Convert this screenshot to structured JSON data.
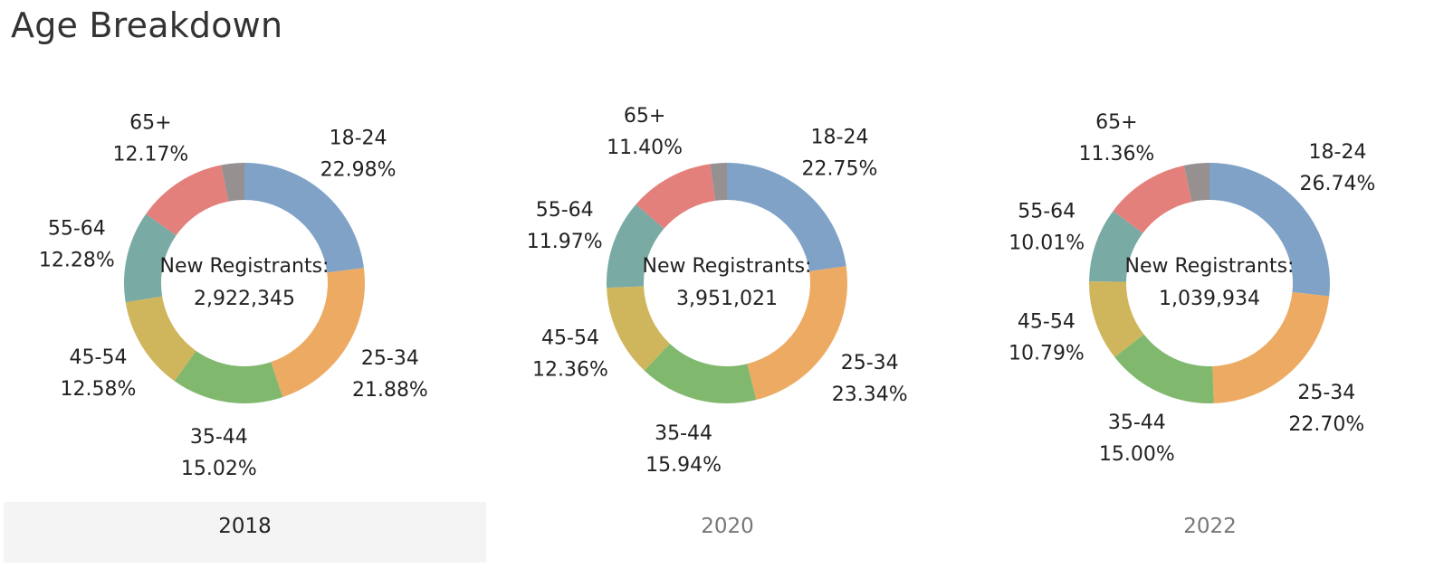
{
  "page": {
    "title": "Age Breakdown"
  },
  "colors": {
    "18-24": "#7fa2c6",
    "25-34": "#edaa62",
    "35-44": "#80b86e",
    "45-54": "#cfb65c",
    "55-64": "#7aaaa4",
    "65+": "#e4807c",
    "unknown": "#979090"
  },
  "tabs": [
    {
      "label": "2018",
      "active": true
    },
    {
      "label": "2020",
      "active": false
    },
    {
      "label": "2022",
      "active": false
    }
  ],
  "chart_data": [
    {
      "type": "pie",
      "donut": true,
      "year": "2018",
      "center_title": "New Registrants:",
      "center_value": "2,922,345",
      "slices": [
        {
          "name": "18-24",
          "value": 22.98,
          "label": "22.98%"
        },
        {
          "name": "25-34",
          "value": 21.88,
          "label": "21.88%"
        },
        {
          "name": "35-44",
          "value": 15.02,
          "label": "15.02%"
        },
        {
          "name": "45-54",
          "value": 12.58,
          "label": "12.58%"
        },
        {
          "name": "55-64",
          "value": 12.28,
          "label": "12.28%"
        },
        {
          "name": "65+",
          "value": 12.17,
          "label": "12.17%"
        },
        {
          "name": "",
          "value": 3.09,
          "label": ""
        }
      ]
    },
    {
      "type": "pie",
      "donut": true,
      "year": "2020",
      "center_title": "New Registrants:",
      "center_value": "3,951,021",
      "slices": [
        {
          "name": "18-24",
          "value": 22.75,
          "label": "22.75%"
        },
        {
          "name": "25-34",
          "value": 23.34,
          "label": "23.34%"
        },
        {
          "name": "35-44",
          "value": 15.94,
          "label": "15.94%"
        },
        {
          "name": "45-54",
          "value": 12.36,
          "label": "12.36%"
        },
        {
          "name": "55-64",
          "value": 11.97,
          "label": "11.97%"
        },
        {
          "name": "65+",
          "value": 11.4,
          "label": "11.40%"
        },
        {
          "name": "",
          "value": 2.24,
          "label": ""
        }
      ]
    },
    {
      "type": "pie",
      "donut": true,
      "year": "2022",
      "center_title": "New Registrants:",
      "center_value": "1,039,934",
      "slices": [
        {
          "name": "18-24",
          "value": 26.74,
          "label": "26.74%"
        },
        {
          "name": "25-34",
          "value": 22.7,
          "label": "22.70%"
        },
        {
          "name": "35-44",
          "value": 15.0,
          "label": "15.00%"
        },
        {
          "name": "45-54",
          "value": 10.79,
          "label": "10.79%"
        },
        {
          "name": "55-64",
          "value": 10.01,
          "label": "10.01%"
        },
        {
          "name": "65+",
          "value": 11.36,
          "label": "11.36%"
        },
        {
          "name": "",
          "value": 3.4,
          "label": ""
        }
      ]
    }
  ]
}
